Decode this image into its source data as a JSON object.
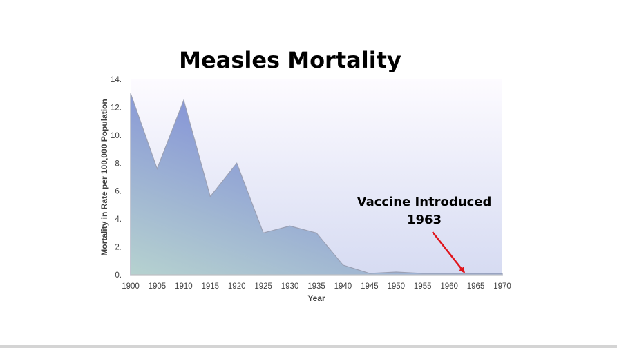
{
  "chart_data": {
    "type": "area",
    "title": "Measles Mortality",
    "xlabel": "Year",
    "ylabel": "Mortality in Rate per 100,000 Population",
    "x": [
      1900,
      1905,
      1910,
      1915,
      1920,
      1925,
      1930,
      1935,
      1940,
      1945,
      1950,
      1955,
      1960,
      1965,
      1970
    ],
    "y": [
      13.0,
      7.6,
      12.5,
      5.6,
      8.0,
      3.0,
      3.5,
      3.0,
      0.7,
      0.1,
      0.2,
      0.1,
      0.1,
      0.1,
      0.1
    ],
    "xticks": [
      "1900",
      "1905",
      "1910",
      "1915",
      "1920",
      "1925",
      "1930",
      "1935",
      "1940",
      "1945",
      "1950",
      "1955",
      "1960",
      "1965",
      "1970"
    ],
    "yticks": [
      "0.",
      "2.",
      "4.",
      "6.",
      "8.",
      "10.",
      "12.",
      "14."
    ],
    "ylim": [
      0,
      14
    ],
    "xlim": [
      1900,
      1970
    ],
    "grid": false,
    "legend": "none",
    "colors": {
      "area_light": "#b6d2cf",
      "area_dark": "#7f8cd8",
      "area_edge": "#9aa0b4",
      "plot_bg_top": "#fdfbff",
      "plot_bg_bottom": "#d6dbf2",
      "arrow": "#e0141b"
    },
    "annotation": {
      "line1": "Vaccine Introduced",
      "line2": "1963",
      "target_x": 1963,
      "target_y": 0
    }
  }
}
